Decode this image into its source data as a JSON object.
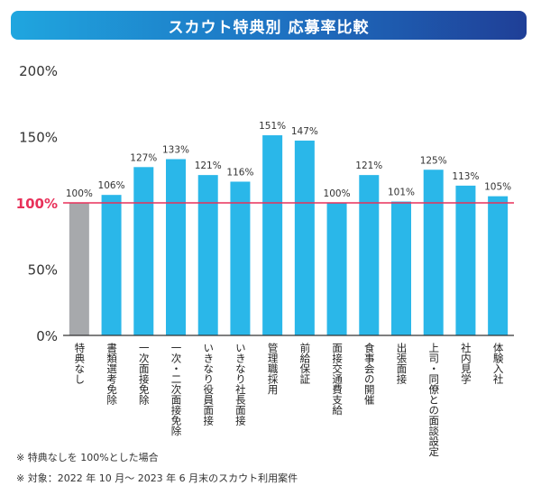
{
  "chart_data": {
    "type": "bar",
    "title": "スカウト特典別 応募率比較",
    "categories": [
      "特典なし",
      "書類選考免除",
      "一次面接免除",
      "一次・二次面接免除",
      "いきなり役員面接",
      "いきなり社長面接",
      "管理職採用",
      "前給保証",
      "面接交通費支給",
      "食事会の開催",
      "出張面接",
      "上司・同僚との面談設定",
      "社内見学",
      "体験入社"
    ],
    "values": [
      100,
      106,
      127,
      133,
      121,
      116,
      151,
      147,
      100,
      121,
      101,
      125,
      113,
      105
    ],
    "value_labels": [
      "100%",
      "106%",
      "127%",
      "133%",
      "121%",
      "116%",
      "151%",
      "147%",
      "100%",
      "121%",
      "101%",
      "125%",
      "113%",
      "105%"
    ],
    "ylim": [
      0,
      200
    ],
    "yticks": [
      0,
      50,
      100,
      150,
      200
    ],
    "ytick_labels": [
      "0%",
      "50%",
      "100%",
      "150%",
      "200%"
    ],
    "reference_line": {
      "value": 100,
      "label": "100%"
    },
    "xlabel": "",
    "ylabel": "",
    "colors": {
      "bar": "#2ab7e9",
      "baseline_bar": "#a7a9ac",
      "reference_line": "#e8315a",
      "axis": "#333333"
    }
  },
  "footnotes": [
    "※ 特典なしを 100%とした場合",
    "※ 対象：2022 年 10 月～ 2023 年 6 月末のスカウト利用案件"
  ]
}
